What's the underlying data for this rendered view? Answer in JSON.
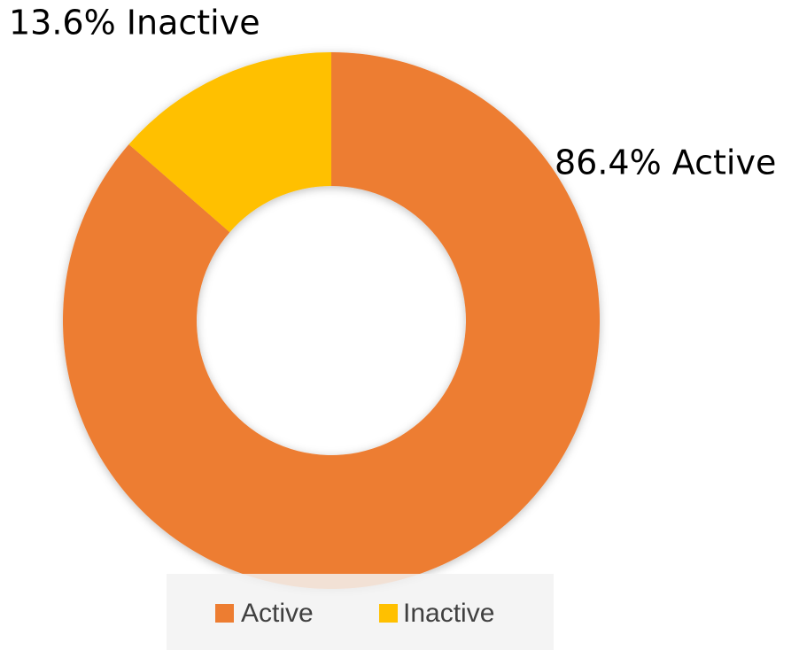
{
  "chart_data": {
    "type": "donut",
    "categories": [
      "Active",
      "Inactive"
    ],
    "values": [
      86.4,
      13.6
    ],
    "value_labels": [
      "86.4% Active",
      "13.6% Inactive"
    ],
    "colors": [
      "#ED7D31",
      "#FFC000"
    ],
    "legend": "bottom"
  }
}
